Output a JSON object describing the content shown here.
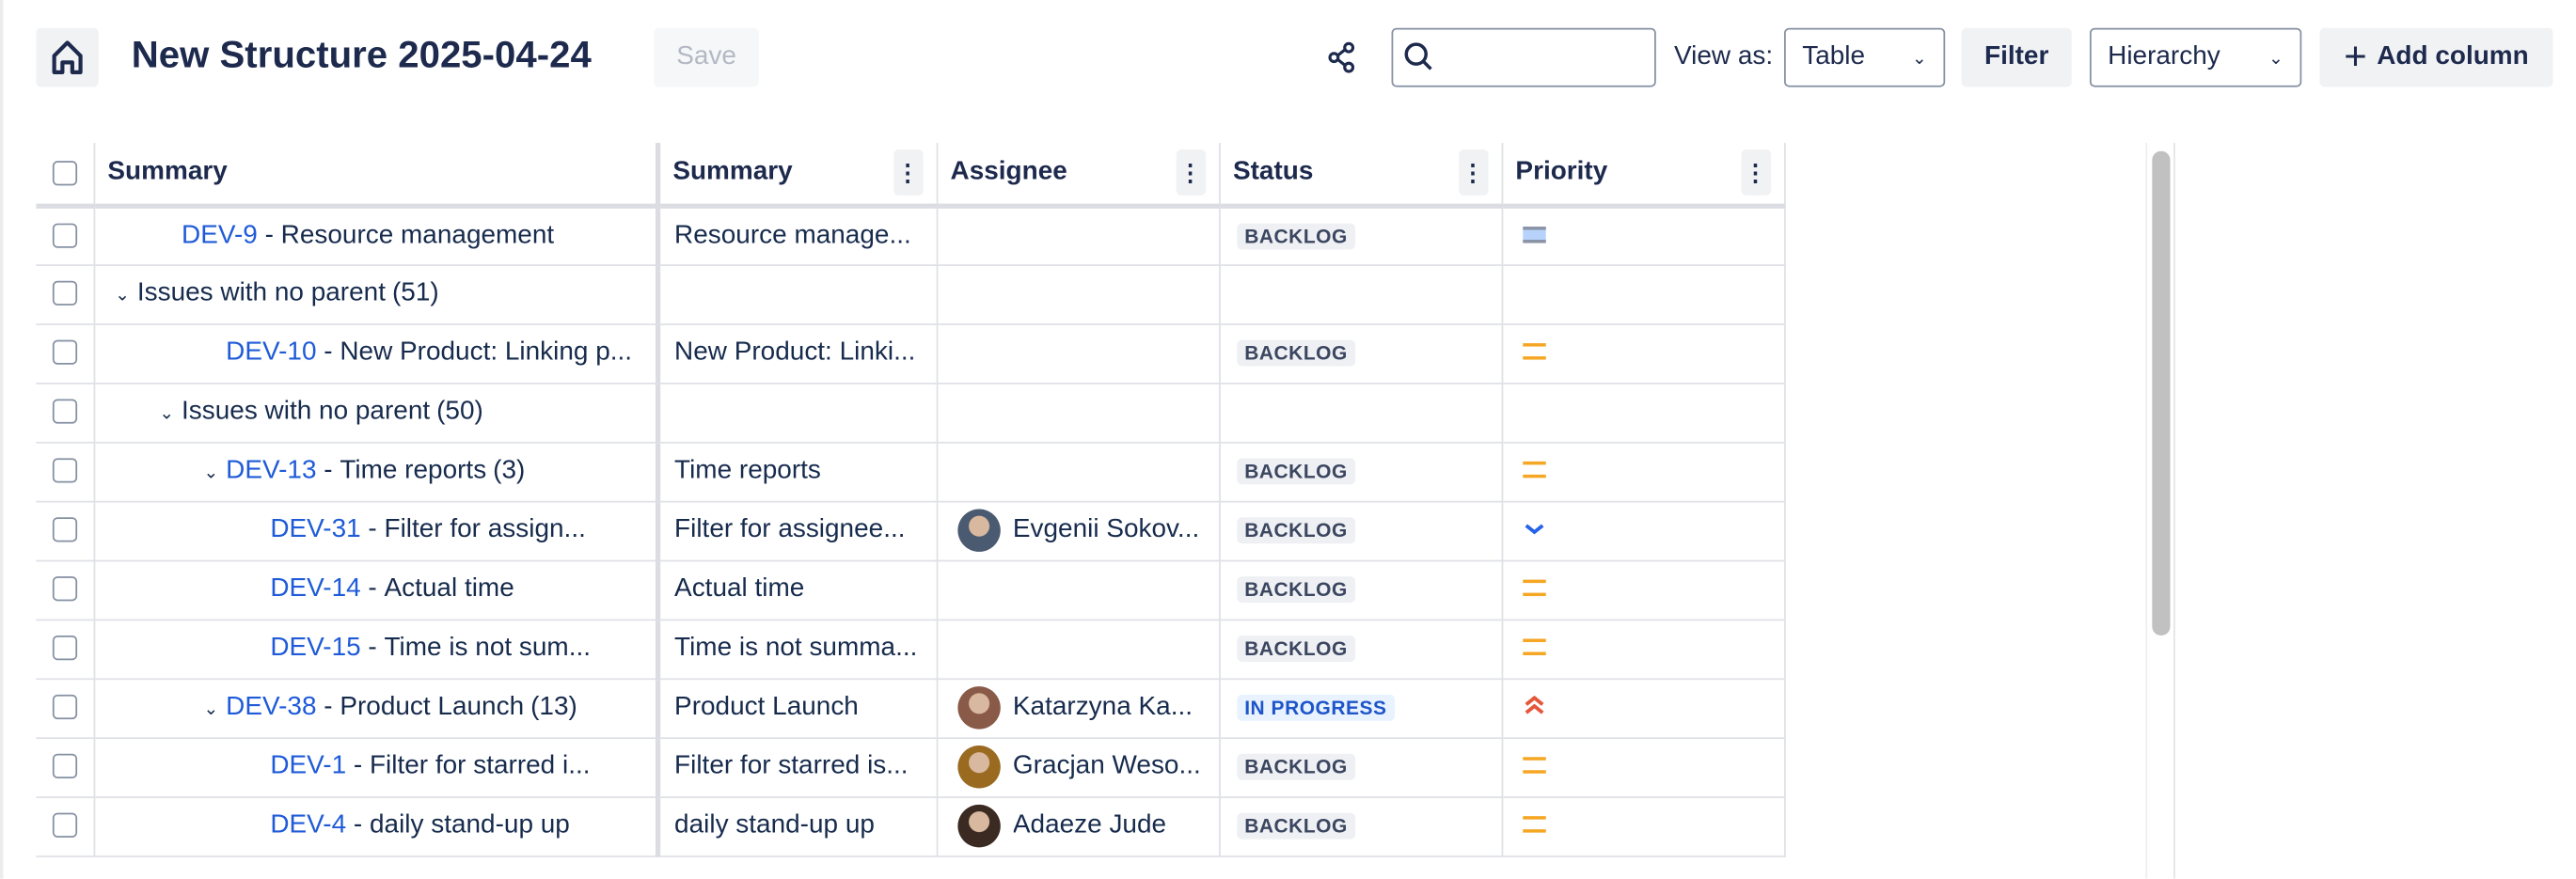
{
  "header": {
    "title": "New Structure 2025-04-24",
    "save_label": "Save",
    "view_as_label": "View as:",
    "view_value": "Table",
    "filter_label": "Filter",
    "hierarchy_value": "Hierarchy",
    "add_column_label": "Add column",
    "search_placeholder": ""
  },
  "columns": [
    "Summary",
    "Summary",
    "Assignee",
    "Status",
    "Priority"
  ],
  "rows": [
    {
      "indent": 1,
      "chevron": false,
      "key": "DEV-9",
      "title": "Resource management",
      "count": "",
      "summary": "Resource manage...",
      "assignee": "",
      "avatar": "",
      "status": "BACKLOG",
      "priority": "medium",
      "priority_selected": true
    },
    {
      "indent": 0,
      "chevron": true,
      "key": "",
      "title": "Issues with no parent",
      "count": "(51)",
      "summary": "",
      "assignee": "",
      "avatar": "",
      "status": "",
      "priority": ""
    },
    {
      "indent": 2,
      "chevron": false,
      "key": "DEV-10",
      "title": "New Product: Linking p...",
      "count": "",
      "summary": "New Product: Linki...",
      "assignee": "",
      "avatar": "",
      "status": "BACKLOG",
      "priority": "medium"
    },
    {
      "indent": 1,
      "chevron": true,
      "key": "",
      "title": "Issues with no parent",
      "count": "(50)",
      "summary": "",
      "assignee": "",
      "avatar": "",
      "status": "",
      "priority": ""
    },
    {
      "indent": 2,
      "chevron": true,
      "key": "DEV-13",
      "title": "Time reports",
      "count": "(3)",
      "summary": "Time reports",
      "assignee": "",
      "avatar": "",
      "status": "BACKLOG",
      "priority": "medium"
    },
    {
      "indent": 3,
      "chevron": false,
      "key": "DEV-31",
      "title": "Filter for assign...",
      "count": "",
      "summary": "Filter for assignee...",
      "assignee": "Evgenii Sokov...",
      "avatar": "#4a5a70",
      "status": "BACKLOG",
      "priority": "low"
    },
    {
      "indent": 3,
      "chevron": false,
      "key": "DEV-14",
      "title": "Actual time",
      "count": "",
      "summary": "Actual time",
      "assignee": "",
      "avatar": "",
      "status": "BACKLOG",
      "priority": "medium"
    },
    {
      "indent": 3,
      "chevron": false,
      "key": "DEV-15",
      "title": "Time is not sum...",
      "count": "",
      "summary": "Time is not summa...",
      "assignee": "",
      "avatar": "",
      "status": "BACKLOG",
      "priority": "medium"
    },
    {
      "indent": 2,
      "chevron": true,
      "key": "DEV-38",
      "title": "Product Launch",
      "count": "(13)",
      "summary": "Product Launch",
      "assignee": "Katarzyna Ka...",
      "avatar": "#8a5a48",
      "status": "IN PROGRESS",
      "priority": "highest"
    },
    {
      "indent": 3,
      "chevron": false,
      "key": "DEV-1",
      "title": "Filter for starred i...",
      "count": "",
      "summary": "Filter for starred is...",
      "assignee": "Gracjan Weso...",
      "avatar": "#9a6a20",
      "status": "BACKLOG",
      "priority": "medium"
    },
    {
      "indent": 3,
      "chevron": false,
      "key": "DEV-4",
      "title": "daily stand-up up",
      "count": "",
      "summary": "daily stand-up up",
      "assignee": "Adaeze Jude",
      "avatar": "#3a2a22",
      "status": "BACKLOG",
      "priority": "medium"
    }
  ],
  "colors": {
    "link": "#1f5bd8",
    "medium": "#f5a623",
    "low": "#2563eb",
    "highest": "#e5573a",
    "in_progress_bg": "#e9f2ff"
  }
}
